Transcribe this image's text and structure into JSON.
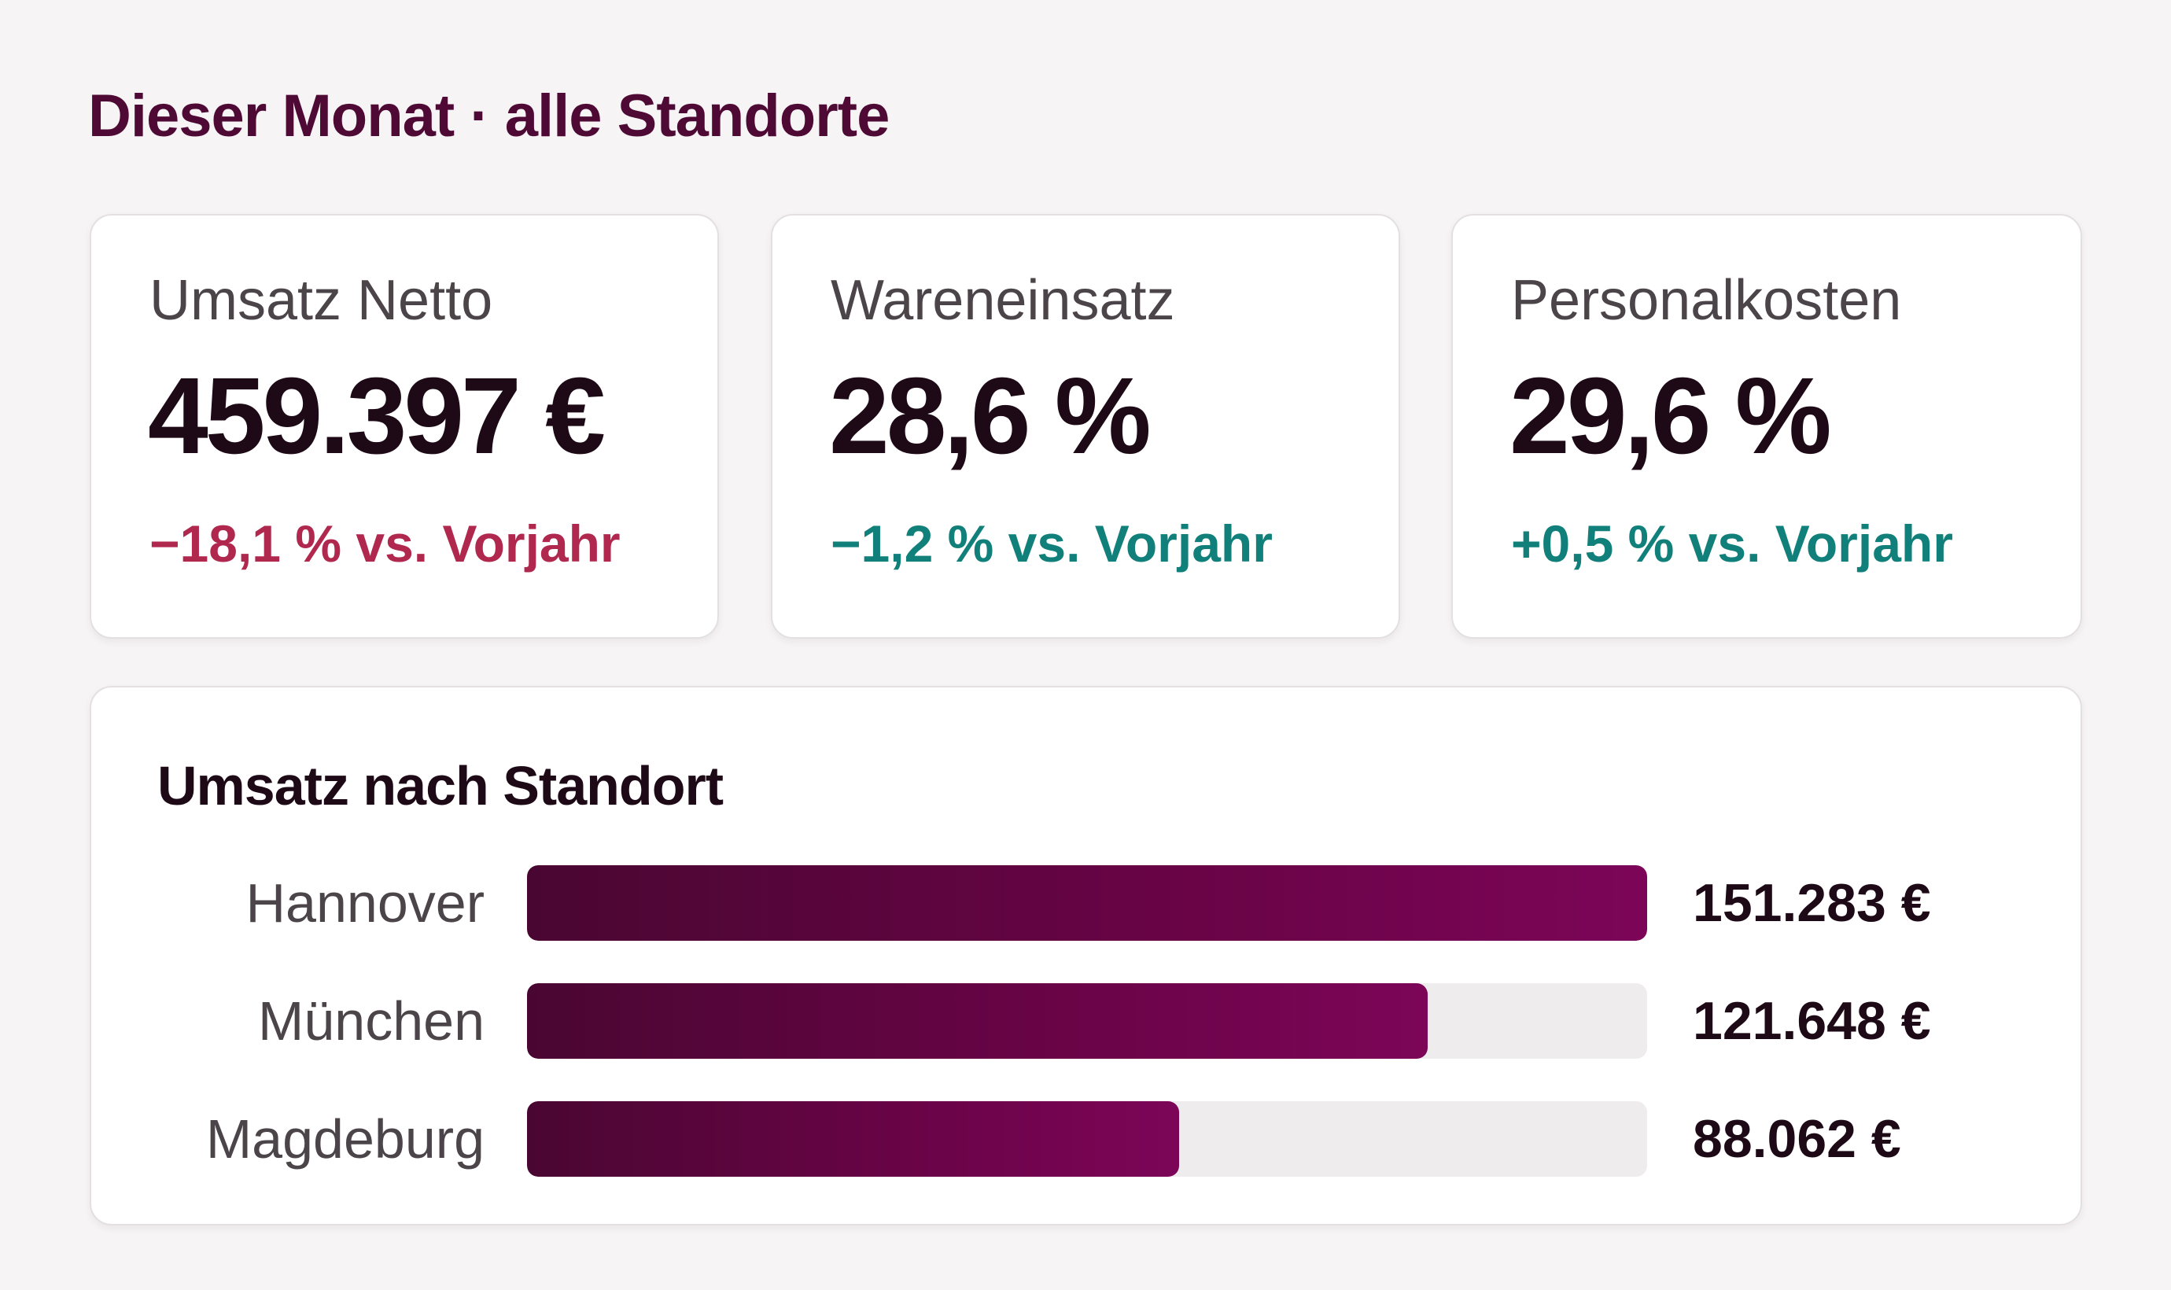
{
  "header": {
    "title": "Dieser Monat · alle Standorte"
  },
  "kpis": [
    {
      "label": "Umsatz Netto",
      "value": "459.397 €",
      "delta": "−18,1 % vs. Vorjahr",
      "trend": "negative"
    },
    {
      "label": "Wareneinsatz",
      "value": "28,6 %",
      "delta": "−1,2 % vs. Vorjahr",
      "trend": "positive"
    },
    {
      "label": "Personalkosten",
      "value": "29,6 %",
      "delta": "+0,5 % vs. Vorjahr",
      "trend": "positive"
    }
  ],
  "standorte": {
    "title": "Umsatz nach Standort",
    "rows": [
      {
        "label": "Hannover",
        "value": "151.283 €",
        "amount": 151283
      },
      {
        "label": "München",
        "value": "121.648 €",
        "amount": 121648
      },
      {
        "label": "Magdeburg",
        "value": "88.062 €",
        "amount": 88062
      }
    ],
    "max_amount": 151283
  },
  "colors": {
    "brand": "#4e0a35",
    "bar_fill_start": "#4a0632",
    "bar_fill_end": "#7c0558",
    "bar_track": "#efeced",
    "delta_negative": "#b1284f",
    "delta_positive": "#12807a"
  }
}
